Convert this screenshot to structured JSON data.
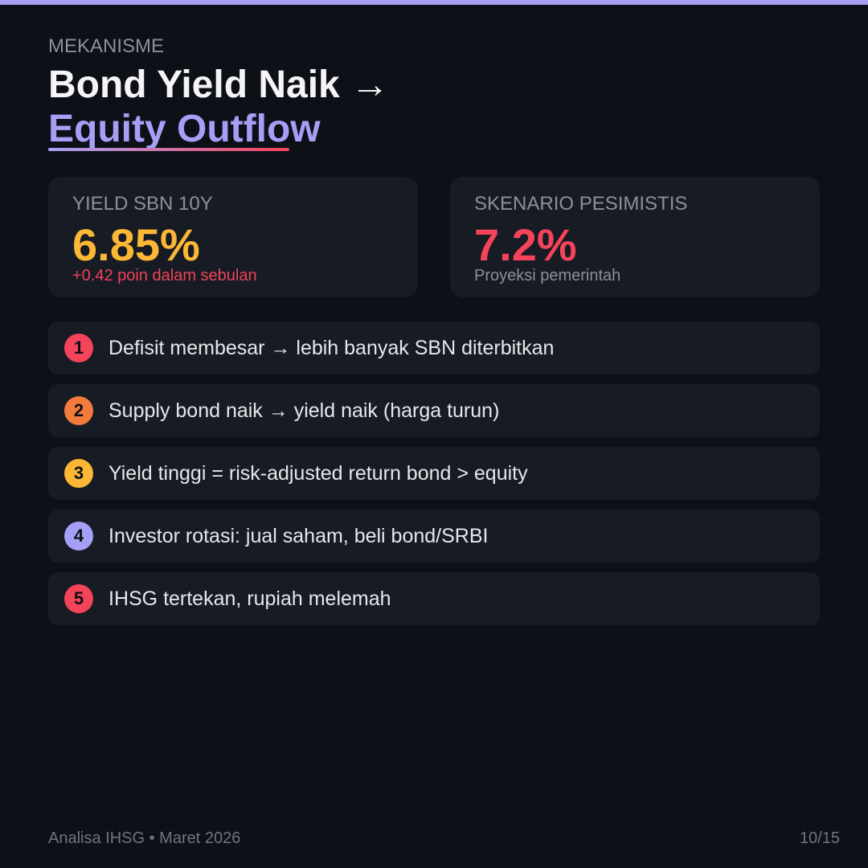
{
  "header": {
    "eyebrow": "MEKANISME",
    "title": "Bond Yield Naik →",
    "highlight": "Equity Outflow"
  },
  "stats": [
    {
      "label": "YIELD SBN 10Y",
      "value": "6.85%",
      "note": "+0.42 poin dalam sebulan"
    },
    {
      "label": "SKENARIO PESIMISTIS",
      "value": "7.2%",
      "note": "Proyeksi pemerintah"
    }
  ],
  "steps": [
    {
      "number": "1",
      "text": "Defisit membesar → lebih banyak SBN diterbitkan"
    },
    {
      "number": "2",
      "text": "Supply bond naik → yield naik (harga turun)"
    },
    {
      "number": "3",
      "text": "Yield tinggi = risk-adjusted return bond > equity"
    },
    {
      "number": "4",
      "text": "Investor rotasi: jual saham, beli bond/SRBI"
    },
    {
      "number": "5",
      "text": "IHSG tertekan, rupiah melemah"
    }
  ],
  "footer": {
    "source": "Analisa IHSG • Maret 2026",
    "page": "10/15"
  }
}
